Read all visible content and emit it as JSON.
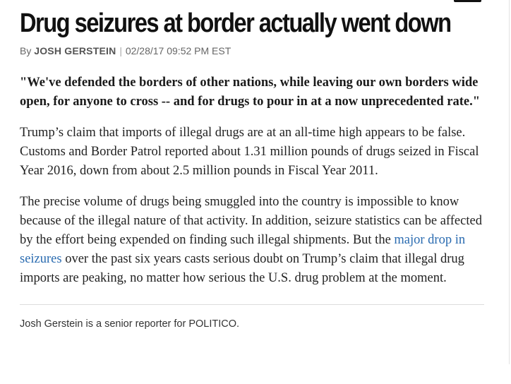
{
  "article": {
    "headline": "Drug seizures at border actually went down",
    "byline": {
      "prefix": "By",
      "author": "JOSH GERSTEIN",
      "separator": "|",
      "timestamp": "02/28/17 09:52 PM EST"
    },
    "quote": "\"We've defended the borders of other nations, while leaving our own borders wide open, for anyone to cross -- and for drugs to pour in at a now unprecedented rate.\"",
    "paragraph_1": "Trump’s claim that imports of illegal drugs are at an all-time high appears to be false. Customs and Border Patrol reported about 1.31 million pounds of drugs seized in Fiscal Year 2016, down from about 2.5 million pounds in Fiscal Year 2011.",
    "paragraph_2": {
      "before_link": "The precise volume of drugs being smuggled into the country is impossible to know because of the illegal nature of that activity. In addition, seizure statistics can be affected by the effort being expended on finding such illegal shipments. But the ",
      "link_text": "major drop in seizures",
      "after_link": " over the past six years casts serious doubt on Trump’s claim that illegal drug imports are peaking, no matter how serious the U.S. drug problem at the moment."
    },
    "author_bio": "Josh Gerstein is a senior reporter for POLITICO."
  },
  "colors": {
    "link": "#2a6bb0",
    "headline": "#111111",
    "byline": "#666666"
  }
}
